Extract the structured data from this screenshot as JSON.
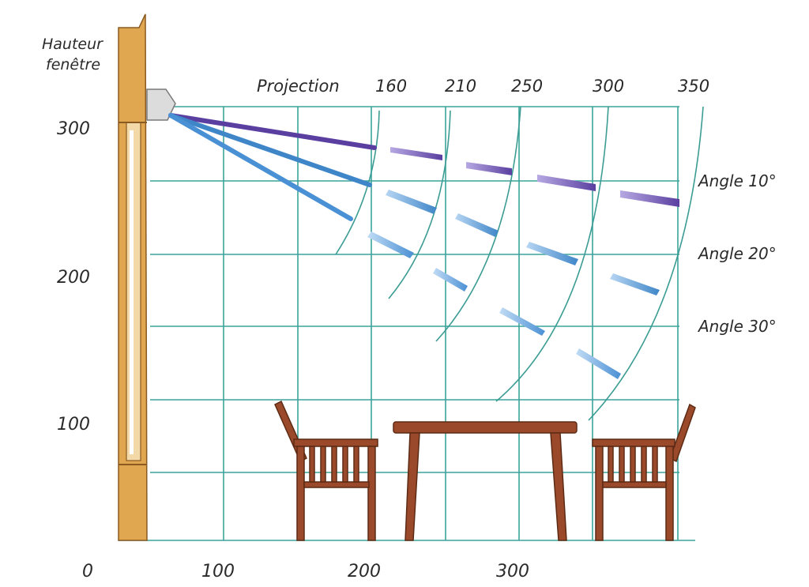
{
  "labels": {
    "y_axis_title_line1": "Hauteur",
    "y_axis_title_line2": "fenêtre",
    "projection_title": "Projection"
  },
  "y_ticks": [
    {
      "value": 300,
      "label": "300"
    },
    {
      "value": 200,
      "label": "200"
    },
    {
      "value": 100,
      "label": "100"
    }
  ],
  "x_ticks": [
    {
      "value": 0,
      "label": "0"
    },
    {
      "value": 100,
      "label": "100"
    },
    {
      "value": 200,
      "label": "200"
    },
    {
      "value": 300,
      "label": "300"
    }
  ],
  "projections": [
    "160",
    "210",
    "250",
    "300",
    "350"
  ],
  "angles": [
    "Angle 10°",
    "Angle 20°",
    "Angle 30°"
  ],
  "colors": {
    "grid": "#3aa39a",
    "wood": "#e0a650",
    "angle_10": "#5a3fa0",
    "angle_20": "#3f86c8",
    "angle_30": "#4a90d4",
    "furniture": "#9a4a2a"
  }
}
